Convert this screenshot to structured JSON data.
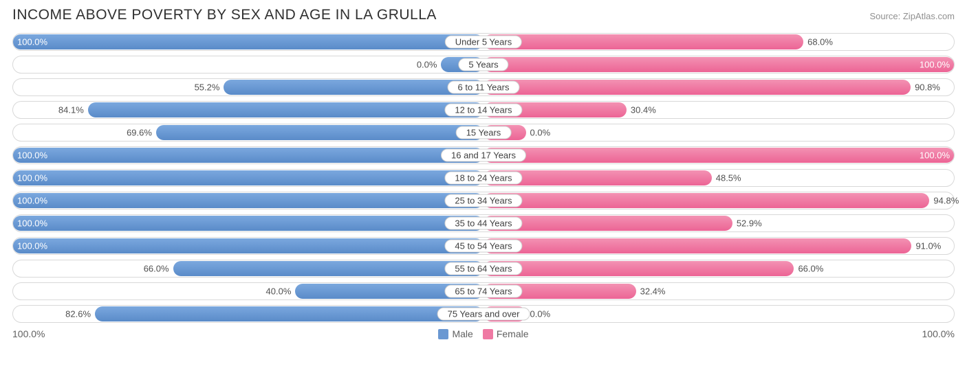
{
  "title": "INCOME ABOVE POVERTY BY SEX AND AGE IN LA GRULLA",
  "source": "Source: ZipAtlas.com",
  "axis": {
    "left_label": "100.0%",
    "right_label": "100.0%",
    "max": 100.0
  },
  "colors": {
    "male_top": "#7ba8de",
    "male_bottom": "#5a8bc9",
    "female_top": "#f392b3",
    "female_bottom": "#ec6495",
    "row_border": "#d8d8d8",
    "pill_border": "#cccccc",
    "text": "#404040",
    "title_text": "#303030",
    "source_text": "#909090",
    "background": "#ffffff"
  },
  "legend": [
    {
      "label": "Male",
      "color": "#6a98d2"
    },
    {
      "label": "Female",
      "color": "#ef79a3"
    }
  ],
  "value_label_inside_threshold_pct": 12,
  "min_visible_bar_pct": 9,
  "rows": [
    {
      "category": "Under 5 Years",
      "male": 100.0,
      "female": 68.0
    },
    {
      "category": "5 Years",
      "male": 0.0,
      "female": 100.0
    },
    {
      "category": "6 to 11 Years",
      "male": 55.2,
      "female": 90.8
    },
    {
      "category": "12 to 14 Years",
      "male": 84.1,
      "female": 30.4
    },
    {
      "category": "15 Years",
      "male": 69.6,
      "female": 0.0
    },
    {
      "category": "16 and 17 Years",
      "male": 100.0,
      "female": 100.0
    },
    {
      "category": "18 to 24 Years",
      "male": 100.0,
      "female": 48.5
    },
    {
      "category": "25 to 34 Years",
      "male": 100.0,
      "female": 94.8
    },
    {
      "category": "35 to 44 Years",
      "male": 100.0,
      "female": 52.9
    },
    {
      "category": "45 to 54 Years",
      "male": 100.0,
      "female": 91.0
    },
    {
      "category": "55 to 64 Years",
      "male": 66.0,
      "female": 66.0
    },
    {
      "category": "65 to 74 Years",
      "male": 40.0,
      "female": 32.4
    },
    {
      "category": "75 Years and over",
      "male": 82.6,
      "female": 0.0
    }
  ]
}
